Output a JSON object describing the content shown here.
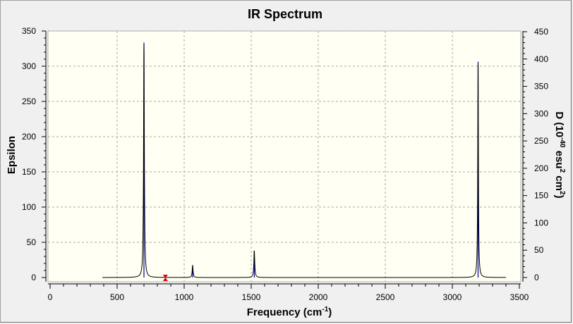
{
  "chart_data": {
    "type": "line",
    "title": "IR Spectrum",
    "xlabel": "Frequency (cm",
    "xlabel_sup": "-1",
    "xlabel_tail": ")",
    "ylabel": "Epsilon",
    "y2label_parts": [
      "D (10",
      "-40",
      " esu",
      "2",
      " cm",
      "2",
      ")"
    ],
    "xlim": [
      0,
      3500
    ],
    "ylim": [
      0,
      350
    ],
    "y2lim": [
      0,
      450
    ],
    "x_ticks": [
      "0",
      "500",
      "1000",
      "1500",
      "2000",
      "2500",
      "3000",
      "3500"
    ],
    "y_ticks": [
      "0",
      "50",
      "100",
      "150",
      "200",
      "250",
      "300",
      "350"
    ],
    "y2_ticks": [
      "0",
      "50",
      "100",
      "150",
      "200",
      "250",
      "300",
      "350",
      "400",
      "450"
    ],
    "grid": true,
    "spectrum_x_range": [
      390,
      3400
    ],
    "epsilon_series": {
      "name": "",
      "color": "#000000",
      "peaks": [
        {
          "x": 700,
          "y": 330,
          "width": 3.5
        },
        {
          "x": 1063,
          "y": 17,
          "width": 4
        },
        {
          "x": 1523,
          "y": 38,
          "width": 4
        },
        {
          "x": 3192,
          "y": 303,
          "width": 3
        }
      ]
    },
    "d_sticks": {
      "name": "",
      "color": "#00008b",
      "values": [
        {
          "x": 700,
          "y": 430
        },
        {
          "x": 1063,
          "y": 22
        },
        {
          "x": 1523,
          "y": 49
        },
        {
          "x": 3192,
          "y": 395
        }
      ]
    },
    "marker": {
      "x": 860,
      "y": 0,
      "color": "#e00000"
    }
  }
}
